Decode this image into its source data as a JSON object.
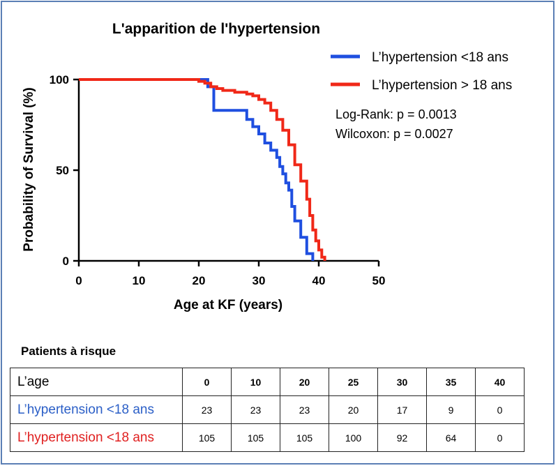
{
  "chart_data": {
    "type": "line",
    "title": "L'apparition de l'hypertension",
    "xlabel": "Age at KF (years)",
    "ylabel": "Probability of Survival (%)",
    "xlim": [
      0,
      50
    ],
    "ylim": [
      0,
      100
    ],
    "xticks": [
      "0",
      "10",
      "20",
      "30",
      "40",
      "50"
    ],
    "yticks": [
      "0",
      "50",
      "100"
    ],
    "grid": false,
    "legend_position": "top-right",
    "series": [
      {
        "name": "L’hypertension <18 ans",
        "color": "#1f4fe0",
        "step": true,
        "x": [
          0,
          21,
          21.5,
          22,
          22.5,
          27,
          28,
          29,
          30,
          31,
          32,
          33,
          33.5,
          34,
          34.5,
          35,
          35.5,
          36,
          37,
          38,
          39
        ],
        "y": [
          100,
          100,
          96,
          96,
          83,
          83,
          78,
          74,
          70,
          65,
          61,
          57,
          52,
          48,
          43,
          39,
          30,
          22,
          13,
          4,
          0
        ]
      },
      {
        "name": "L’hypertension > 18 ans",
        "color": "#f02818",
        "step": true,
        "x": [
          0,
          19,
          20,
          21,
          22,
          23,
          24,
          25,
          26,
          27,
          28,
          29,
          30,
          31,
          32,
          33,
          34,
          35,
          36,
          37,
          38,
          38.5,
          39,
          39.5,
          40,
          40.5,
          41
        ],
        "y": [
          100,
          100,
          99,
          98,
          96,
          95,
          94,
          94,
          93,
          93,
          92,
          91,
          89,
          87,
          83,
          78,
          72,
          64,
          53,
          44,
          34,
          25,
          17,
          11,
          6,
          2,
          0
        ]
      }
    ],
    "annotations": [
      "Log-Rank: p = 0.0013",
      "Wilcoxon: p = 0.0027"
    ]
  },
  "risk_table": {
    "title": "Patients à risque",
    "header_label": "L’age",
    "ages": [
      "0",
      "10",
      "20",
      "25",
      "30",
      "35",
      "40"
    ],
    "rows": [
      {
        "label": "L’hypertension <18 ans",
        "values": [
          "23",
          "23",
          "23",
          "20",
          "17",
          "9",
          "0"
        ]
      },
      {
        "label": "L’hypertension <18 ans",
        "values": [
          "105",
          "105",
          "105",
          "100",
          "92",
          "64",
          "0"
        ]
      }
    ]
  }
}
